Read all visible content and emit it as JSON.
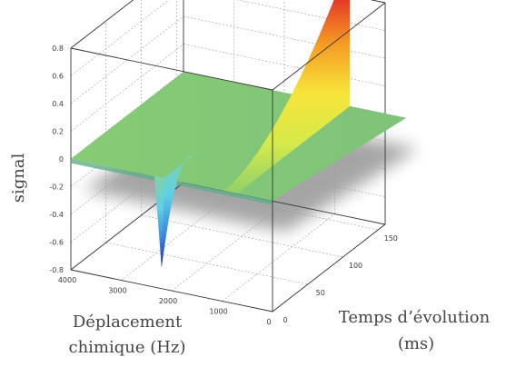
{
  "chart_data": {
    "type": "surface3d",
    "title": "",
    "zlabel": "signal",
    "xlabel_lines": [
      "Déplacement",
      "chimique (Hz)"
    ],
    "ylabel_lines": [
      "Temps d’évolution",
      "(ms)"
    ],
    "x_ticks": [
      "4000",
      "3000",
      "2000",
      "1000",
      "0"
    ],
    "x_tick_values": [
      4000,
      3000,
      2000,
      1000,
      0
    ],
    "y_ticks": [
      "0",
      "50",
      "100",
      "150"
    ],
    "y_tick_values": [
      0,
      50,
      100,
      150
    ],
    "z_ticks": [
      "0.8",
      "0.6",
      "0.4",
      "0.2",
      "0",
      "-0.2",
      "-0.4",
      "-0.6",
      "-0.8"
    ],
    "z_tick_values": [
      0.8,
      0.6,
      0.4,
      0.2,
      0,
      -0.2,
      -0.4,
      -0.6,
      -0.8
    ],
    "xlim": [
      0,
      4000
    ],
    "ylim": [
      0,
      160
    ],
    "zlim": [
      -0.8,
      0.8
    ],
    "grid": true,
    "peaks": [
      {
        "position_hz": 2200,
        "amplitude_at_t0": -0.65,
        "behavior": "negative peak near t=0, recovers to 0 by ~40 ms"
      },
      {
        "position_hz": 700,
        "amplitude_at_tmax": 0.8,
        "behavior": "grows from 0 with evolution time to 0.8 at ~160 ms"
      }
    ],
    "colormap": [
      "#1f3ea8",
      "#2f8fe0",
      "#5fd3e6",
      "#7fc97a",
      "#f6f04a",
      "#f5a623",
      "#e8322a"
    ]
  }
}
